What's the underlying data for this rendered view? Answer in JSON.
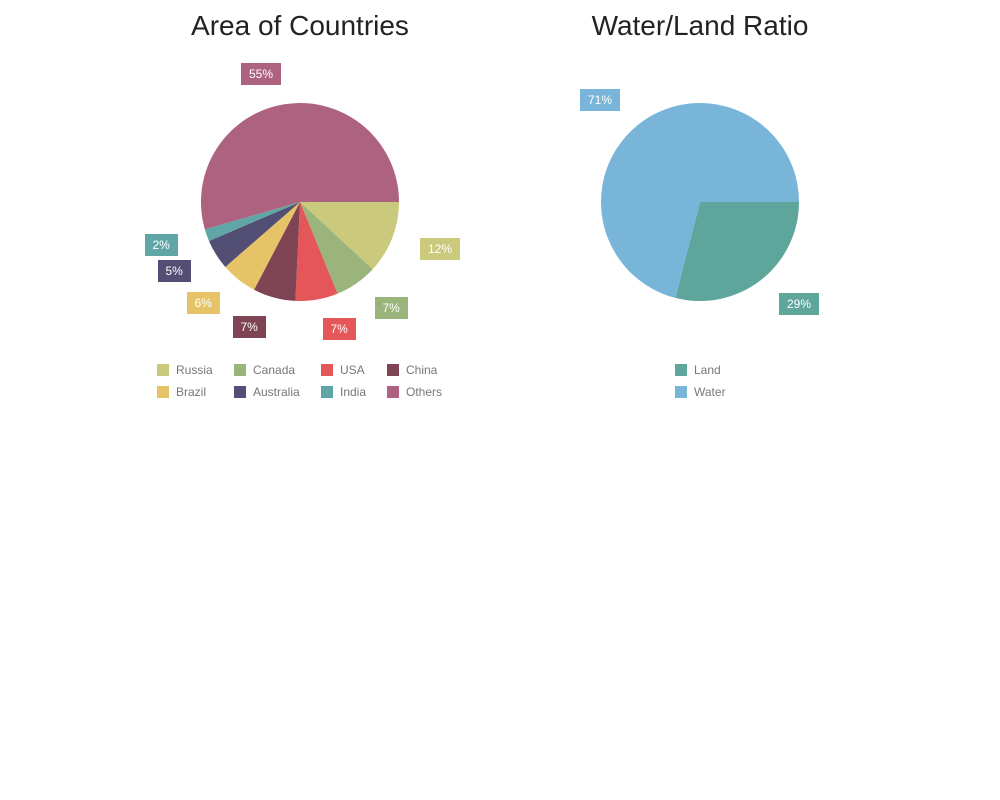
{
  "chart_data": [
    {
      "type": "pie",
      "title": "Area of Countries",
      "slices": [
        {
          "label": "Russia",
          "value": 12,
          "display": "12%",
          "color": "#cbc97b"
        },
        {
          "label": "Canada",
          "value": 7,
          "display": "7%",
          "color": "#9bb47c"
        },
        {
          "label": "USA",
          "value": 7,
          "display": "7%",
          "color": "#e45658"
        },
        {
          "label": "China",
          "value": 7,
          "display": "7%",
          "color": "#7e4454"
        },
        {
          "label": "Brazil",
          "value": 6,
          "display": "6%",
          "color": "#e6c366"
        },
        {
          "label": "Australia",
          "value": 5,
          "display": "5%",
          "color": "#534e74"
        },
        {
          "label": "India",
          "value": 2,
          "display": "2%",
          "color": "#61a6a6"
        },
        {
          "label": "Others",
          "value": 55,
          "display": "55%",
          "color": "#ad6280"
        }
      ],
      "legend_position": "bottom"
    },
    {
      "type": "pie",
      "title": "Water/Land Ratio",
      "slices": [
        {
          "label": "Land",
          "value": 29,
          "display": "29%",
          "color": "#5ea59c"
        },
        {
          "label": "Water",
          "value": 71,
          "display": "71%",
          "color": "#79b5d9"
        }
      ],
      "legend_position": "bottom"
    }
  ]
}
